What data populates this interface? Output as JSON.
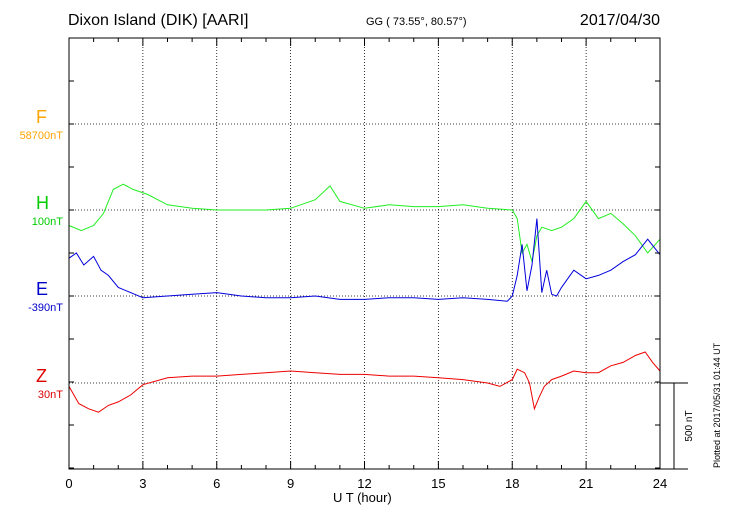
{
  "header": {
    "station": "Dixon Island (DIK)  [AARI]",
    "coords": "GG ( 73.55°,  80.57°)",
    "date": "2017/04/30"
  },
  "components": [
    {
      "letter": "F",
      "base": "58700nT",
      "color": "#ffa500"
    },
    {
      "letter": "H",
      "base": "100nT",
      "color": "#00cc00"
    },
    {
      "letter": "E",
      "base": "-390nT",
      "color": "#0000cc"
    },
    {
      "letter": "Z",
      "base": "30nT",
      "color": "#dd0000"
    }
  ],
  "scale_label": "500 nT",
  "plotted_note": "Plotted at 2017/05/31 01:44 UT",
  "chart_data": {
    "type": "line",
    "xlabel": "U T (hour)",
    "xlim": [
      0,
      24
    ],
    "xticks": [
      "0",
      "3",
      "6",
      "9",
      "12",
      "15",
      "18",
      "21",
      "24"
    ],
    "series": [
      {
        "name": "H",
        "color": "#22ee22",
        "x": [
          0,
          0.5,
          1.0,
          1.4,
          1.8,
          2.2,
          2.6,
          3.2,
          4.0,
          5.0,
          6.0,
          7.0,
          8.0,
          9.0,
          10.0,
          10.6,
          11.0,
          12.0,
          13.0,
          14.0,
          15.0,
          16.0,
          17.0,
          18.0,
          18.2,
          18.4,
          18.6,
          18.8,
          19.0,
          19.2,
          19.6,
          20.0,
          20.5,
          21.0,
          21.5,
          22.0,
          22.5,
          23.0,
          23.5,
          24.0
        ],
        "values": [
          -90,
          -120,
          -90,
          -20,
          120,
          150,
          120,
          90,
          30,
          10,
          0,
          0,
          0,
          10,
          60,
          140,
          50,
          10,
          30,
          20,
          20,
          30,
          10,
          0,
          -50,
          -250,
          -200,
          -300,
          -150,
          -100,
          -120,
          -100,
          -50,
          50,
          -50,
          -20,
          -80,
          -150,
          -250,
          -170
        ]
      },
      {
        "name": "E",
        "color": "#0000dd",
        "x": [
          0,
          0.3,
          0.6,
          1.0,
          1.3,
          1.6,
          2.0,
          2.5,
          3.0,
          4.0,
          5.0,
          6.0,
          7.0,
          8.0,
          9.0,
          10.0,
          11.0,
          12.0,
          13.0,
          14.0,
          15.0,
          16.0,
          17.0,
          17.8,
          18.0,
          18.2,
          18.4,
          18.6,
          18.8,
          19.0,
          19.2,
          19.4,
          19.6,
          19.8,
          20.0,
          20.5,
          21.0,
          21.5,
          22.0,
          22.5,
          23.0,
          23.5,
          24.0
        ],
        "values": [
          220,
          250,
          180,
          230,
          150,
          120,
          50,
          20,
          -10,
          0,
          10,
          20,
          0,
          -10,
          -10,
          0,
          -20,
          -20,
          -10,
          -10,
          -20,
          -10,
          -20,
          -30,
          0,
          120,
          300,
          30,
          180,
          450,
          20,
          150,
          10,
          0,
          50,
          150,
          100,
          120,
          150,
          200,
          240,
          330,
          240
        ]
      },
      {
        "name": "Z",
        "color": "#ee0000",
        "x": [
          0,
          0.4,
          0.8,
          1.2,
          1.6,
          2.0,
          2.5,
          3.0,
          4.0,
          5.0,
          6.0,
          7.0,
          8.0,
          9.0,
          10.0,
          11.0,
          12.0,
          13.0,
          14.0,
          15.0,
          16.0,
          17.0,
          17.5,
          18.0,
          18.2,
          18.5,
          18.7,
          18.9,
          19.1,
          19.3,
          19.6,
          20.0,
          20.5,
          21.0,
          21.5,
          22.0,
          22.5,
          23.0,
          23.4,
          23.7,
          24.0
        ],
        "values": [
          -20,
          -120,
          -150,
          -170,
          -130,
          -110,
          -70,
          -10,
          30,
          40,
          40,
          50,
          60,
          70,
          60,
          50,
          50,
          40,
          40,
          30,
          20,
          0,
          -20,
          20,
          80,
          60,
          0,
          -150,
          -80,
          -20,
          20,
          40,
          70,
          60,
          60,
          100,
          120,
          160,
          180,
          120,
          70
        ]
      }
    ]
  }
}
